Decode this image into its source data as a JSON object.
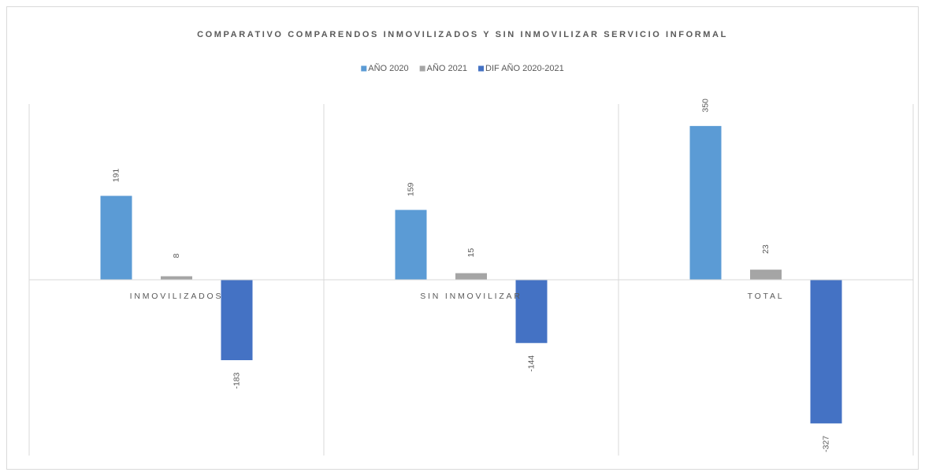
{
  "chart_data": {
    "type": "bar",
    "title": "COMPARATIVO COMPARENDOS INMOVILIZADOS Y SIN INMOVILIZAR SERVICIO INFORMAL",
    "categories": [
      "INMOVILIZADOS",
      "SIN INMOVILIZAR",
      "TOTAL"
    ],
    "series": [
      {
        "name": "AÑO 2020",
        "color": "#5b9bd5",
        "values": [
          191,
          159,
          350
        ]
      },
      {
        "name": "AÑO 2021",
        "color": "#a5a5a5",
        "values": [
          8,
          15,
          23
        ]
      },
      {
        "name": "DIF AÑO 2020-2021",
        "color": "#4472c4",
        "values": [
          -183,
          -144,
          -327
        ]
      }
    ],
    "ylim": [
      -400,
      400
    ],
    "legend": "top",
    "grid": false
  }
}
